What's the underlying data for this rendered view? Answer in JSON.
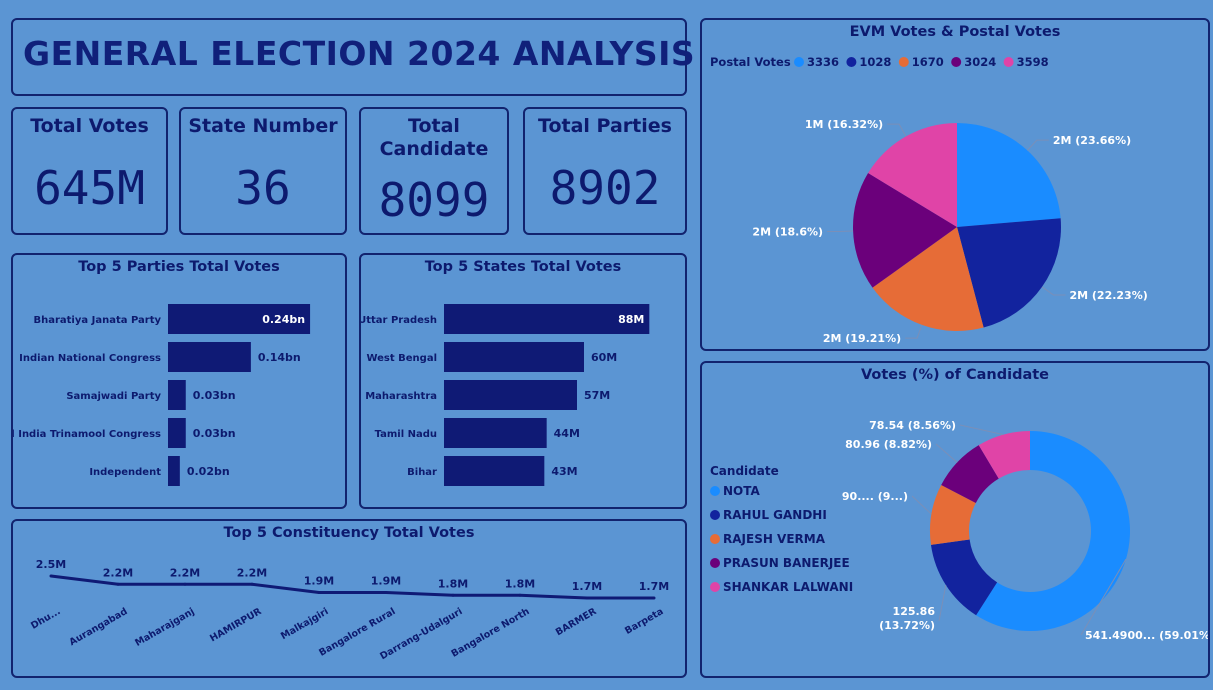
{
  "title": "GENERAL ELECTION 2024 ANALYSIS",
  "kpis": {
    "total_votes": {
      "label": "Total Votes",
      "value": "645M"
    },
    "state_number": {
      "label": "State Number",
      "value": "36"
    },
    "total_candidate": {
      "label_line1": "Total",
      "label_line2": "Candidate",
      "value": "8099"
    },
    "total_parties": {
      "label": "Total Parties",
      "value": "8902"
    }
  },
  "colors": {
    "bar": "#0f1a75",
    "text_dark": "#0d1a6e",
    "background": "#5b95d3",
    "pie": [
      "#1a8cff",
      "#12239e",
      "#e66c37",
      "#6b007b",
      "#e044a7"
    ]
  },
  "chart_data": [
    {
      "id": "parties",
      "type": "bar",
      "title": "Top 5 Parties Total Votes",
      "categories": [
        "Bharatiya Janata Party",
        "Indian National Congress",
        "Samajwadi Party",
        "All India Trinamool Congress",
        "Independent"
      ],
      "values": [
        0.24,
        0.14,
        0.03,
        0.03,
        0.02
      ],
      "labels": [
        "0.24bn",
        "0.14bn",
        "0.03bn",
        "0.03bn",
        "0.02bn"
      ],
      "orientation": "horizontal",
      "xlim": [
        0,
        0.25
      ]
    },
    {
      "id": "states",
      "type": "bar",
      "title": "Top 5 States Total Votes",
      "categories": [
        "Uttar Pradesh",
        "West Bengal",
        "Maharashtra",
        "Tamil Nadu",
        "Bihar"
      ],
      "values": [
        88,
        60,
        57,
        44,
        43
      ],
      "labels": [
        "88M",
        "60M",
        "57M",
        "44M",
        "43M"
      ],
      "orientation": "horizontal",
      "xlim": [
        0,
        90
      ]
    },
    {
      "id": "constituency",
      "type": "line",
      "title": "Top 5 Constituency Total Votes",
      "categories": [
        "Dhu...",
        "Aurangabad",
        "Maharajganj",
        "HAMIRPUR",
        "Malkajgiri",
        "Bangalore Rural",
        "Darrang-Udalguri",
        "Bangalore North",
        "BARMER",
        "Barpeta"
      ],
      "values": [
        2.5,
        2.2,
        2.2,
        2.2,
        1.9,
        1.9,
        1.8,
        1.8,
        1.7,
        1.7
      ],
      "labels": [
        "2.5M",
        "2.2M",
        "2.2M",
        "2.2M",
        "1.9M",
        "1.9M",
        "1.8M",
        "1.8M",
        "1.7M",
        "1.7M"
      ]
    },
    {
      "id": "evm",
      "type": "pie",
      "title": "EVM Votes & Postal Votes",
      "legend_title": "Postal Votes",
      "legend_placement": "top-left",
      "categories": [
        "3336",
        "1028",
        "1670",
        "3024",
        "3598"
      ],
      "values": [
        23.66,
        22.23,
        19.21,
        18.6,
        16.32
      ],
      "labels": [
        "2M (23.66%)",
        "2M (22.23%)",
        "2M (19.21%)",
        "2M (18.6%)",
        "1M (16.32%)"
      ]
    },
    {
      "id": "candidates",
      "type": "pie",
      "donut": true,
      "title": "Votes (%) of Candidate",
      "legend_title": "Candidate",
      "legend_placement": "left",
      "categories": [
        "NOTA",
        "RAHUL GANDHI",
        "RAJESH VERMA",
        "PRASUN BANERJEE",
        "SHANKAR LALWANI"
      ],
      "values": [
        541.49,
        125.86,
        90,
        80.96,
        78.54
      ],
      "percents": [
        59.01,
        13.72,
        9.8,
        8.82,
        8.56
      ],
      "labels": [
        "541.4900... (59.01%)",
        "125.86 (13.72%)",
        "90.... (9...)",
        "80.96 (8.82%)",
        "78.54 (8.56%)"
      ]
    }
  ]
}
